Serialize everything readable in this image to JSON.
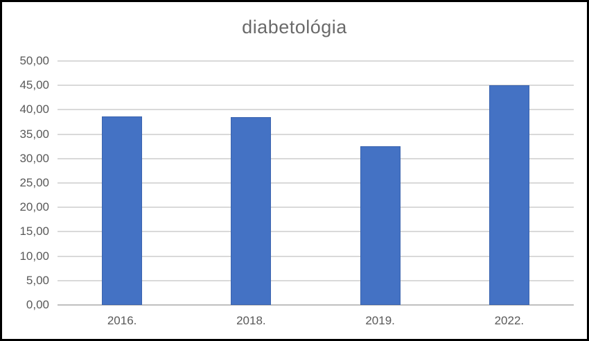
{
  "frame": {
    "background": "#ffffff",
    "border_color": "#000000"
  },
  "chart_data": {
    "type": "bar",
    "title": "diabetológia",
    "categories": [
      "2016.",
      "2018.",
      "2019.",
      "2022."
    ],
    "values": [
      38.7,
      38.5,
      32.5,
      45.0
    ],
    "xlabel": "",
    "ylabel": "",
    "ylim": [
      0,
      50
    ],
    "ytick_step": 5,
    "ytick_labels": [
      "0,00",
      "5,00",
      "10,00",
      "15,00",
      "20,00",
      "25,00",
      "30,00",
      "35,00",
      "40,00",
      "45,00",
      "50,00"
    ],
    "grid": true,
    "legend_position": "none",
    "colors": {
      "bar_fill": "#4472C4",
      "bar_edge": "#3A63AE",
      "gridline": "#D9D9D9",
      "axis_line": "#BFBFBF",
      "title_text": "#6A6A6A",
      "axis_text": "#595959"
    }
  }
}
